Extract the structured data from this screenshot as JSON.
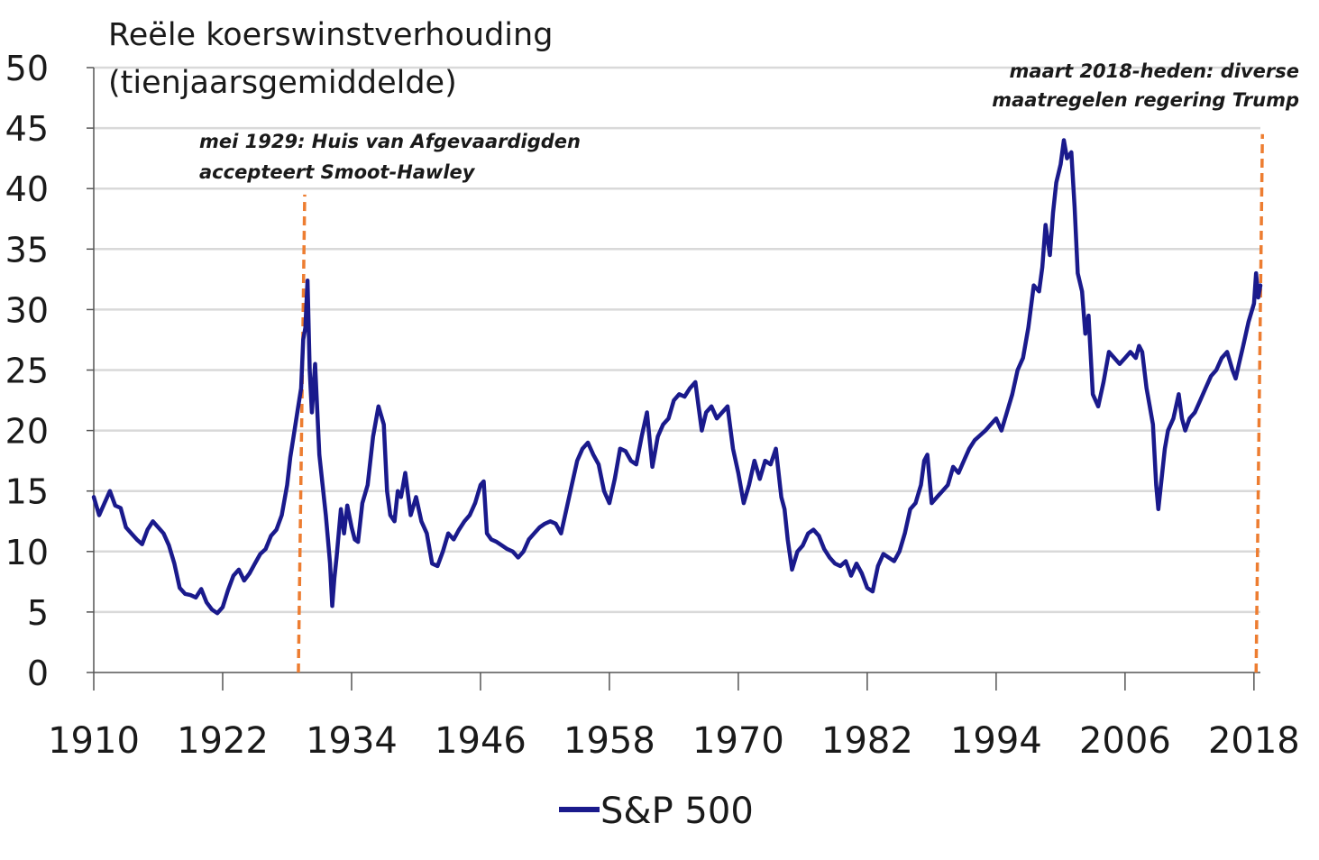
{
  "chart_data": {
    "type": "line",
    "title_lines": [
      "Reële koerswinstverhouding",
      "(tienjaarsgemiddelde)"
    ],
    "xlabel": "",
    "ylabel": "",
    "xlim": [
      1910,
      2018.6
    ],
    "ylim": [
      0,
      50
    ],
    "yticks": [
      0,
      5,
      10,
      15,
      20,
      25,
      30,
      35,
      40,
      45,
      50
    ],
    "xticks": [
      1910,
      1922,
      1934,
      1946,
      1958,
      1970,
      1982,
      1994,
      2006,
      2018
    ],
    "grid": "horizontal",
    "legend": "bottom-center",
    "colors": {
      "series": "#1a1a8c",
      "annotation_line": "#ed7d31",
      "grid": "#d9d9d9",
      "axis": "#555555"
    },
    "series": [
      {
        "name": "S&P 500",
        "x": [
          1910.0,
          1910.5,
          1911.0,
          1911.5,
          1912.0,
          1912.5,
          1913.0,
          1913.5,
          1914.0,
          1914.5,
          1915.0,
          1915.5,
          1916.0,
          1916.5,
          1917.0,
          1917.5,
          1918.0,
          1918.5,
          1919.0,
          1919.5,
          1920.0,
          1920.5,
          1921.0,
          1921.5,
          1922.0,
          1922.5,
          1923.0,
          1923.5,
          1924.0,
          1924.5,
          1925.0,
          1925.5,
          1926.0,
          1926.5,
          1927.0,
          1927.5,
          1928.0,
          1928.3,
          1928.6,
          1929.0,
          1929.3,
          1929.5,
          1929.7,
          1929.9,
          1930.1,
          1930.3,
          1930.6,
          1931.0,
          1931.3,
          1931.6,
          1932.0,
          1932.2,
          1932.4,
          1932.6,
          1933.0,
          1933.3,
          1933.6,
          1934.0,
          1934.3,
          1934.6,
          1935.0,
          1935.5,
          1936.0,
          1936.5,
          1937.0,
          1937.3,
          1937.6,
          1938.0,
          1938.3,
          1938.6,
          1939.0,
          1939.5,
          1940.0,
          1940.5,
          1941.0,
          1941.5,
          1942.0,
          1942.5,
          1943.0,
          1943.5,
          1944.0,
          1944.5,
          1945.0,
          1945.5,
          1946.0,
          1946.3,
          1946.6,
          1947.0,
          1947.5,
          1948.0,
          1948.5,
          1949.0,
          1949.5,
          1950.0,
          1950.5,
          1951.0,
          1951.5,
          1952.0,
          1952.5,
          1953.0,
          1953.5,
          1954.0,
          1954.5,
          1955.0,
          1955.5,
          1956.0,
          1956.5,
          1957.0,
          1957.5,
          1958.0,
          1958.5,
          1959.0,
          1959.5,
          1960.0,
          1960.5,
          1961.0,
          1961.5,
          1962.0,
          1962.5,
          1963.0,
          1963.5,
          1964.0,
          1964.5,
          1965.0,
          1965.5,
          1966.0,
          1966.3,
          1966.6,
          1967.0,
          1967.5,
          1968.0,
          1968.5,
          1969.0,
          1969.5,
          1970.0,
          1970.5,
          1971.0,
          1971.5,
          1972.0,
          1972.5,
          1973.0,
          1973.5,
          1974.0,
          1974.3,
          1974.6,
          1975.0,
          1975.5,
          1976.0,
          1976.5,
          1977.0,
          1977.5,
          1978.0,
          1978.5,
          1979.0,
          1979.5,
          1980.0,
          1980.5,
          1981.0,
          1981.5,
          1982.0,
          1982.5,
          1983.0,
          1983.5,
          1984.0,
          1984.5,
          1985.0,
          1985.5,
          1986.0,
          1986.5,
          1987.0,
          1987.3,
          1987.6,
          1988.0,
          1988.5,
          1989.0,
          1989.5,
          1990.0,
          1990.5,
          1991.0,
          1991.5,
          1992.0,
          1992.5,
          1993.0,
          1993.5,
          1994.0,
          1994.5,
          1995.0,
          1995.5,
          1996.0,
          1996.5,
          1997.0,
          1997.5,
          1998.0,
          1998.3,
          1998.6,
          1999.0,
          1999.3,
          1999.6,
          2000.0,
          2000.3,
          2000.6,
          2001.0,
          2001.3,
          2001.6,
          2002.0,
          2002.3,
          2002.6,
          2003.0,
          2003.5,
          2004.0,
          2004.5,
          2005.0,
          2005.5,
          2006.0,
          2006.5,
          2007.0,
          2007.3,
          2007.6,
          2008.0,
          2008.3,
          2008.6,
          2008.9,
          2009.1,
          2009.4,
          2009.7,
          2010.0,
          2010.5,
          2011.0,
          2011.3,
          2011.6,
          2012.0,
          2012.5,
          2013.0,
          2013.5,
          2014.0,
          2014.5,
          2015.0,
          2015.5,
          2016.0,
          2016.3,
          2016.6,
          2017.0,
          2017.5,
          2018.0,
          2018.2,
          2018.4,
          2018.6
        ],
        "values": [
          14.5,
          13.0,
          14.0,
          15.0,
          13.8,
          13.6,
          12.0,
          11.5,
          11.0,
          10.6,
          11.8,
          12.5,
          12.0,
          11.5,
          10.5,
          9.0,
          7.0,
          6.5,
          6.4,
          6.2,
          6.9,
          5.8,
          5.2,
          4.9,
          5.4,
          6.8,
          8.0,
          8.5,
          7.6,
          8.2,
          9.0,
          9.8,
          10.2,
          11.3,
          11.8,
          13.0,
          15.5,
          17.8,
          19.5,
          21.8,
          23.5,
          27.5,
          28.5,
          32.4,
          25.0,
          21.5,
          25.5,
          18.0,
          15.5,
          13.0,
          9.0,
          5.5,
          7.8,
          9.5,
          13.5,
          11.5,
          13.8,
          12.0,
          11.0,
          10.8,
          14.0,
          15.5,
          19.5,
          22.0,
          20.5,
          15.0,
          13.0,
          12.5,
          15.0,
          14.5,
          16.5,
          13.0,
          14.5,
          12.5,
          11.5,
          9.0,
          8.8,
          10.0,
          11.5,
          11.0,
          11.8,
          12.5,
          13.0,
          14.0,
          15.5,
          15.8,
          11.5,
          11.0,
          10.8,
          10.5,
          10.2,
          10.0,
          9.5,
          10.0,
          11.0,
          11.5,
          12.0,
          12.3,
          12.5,
          12.3,
          11.5,
          13.5,
          15.5,
          17.5,
          18.5,
          19.0,
          18.0,
          17.2,
          15.0,
          14.0,
          16.0,
          18.5,
          18.3,
          17.5,
          17.2,
          19.5,
          21.5,
          17.0,
          19.5,
          20.5,
          21.0,
          22.5,
          23.0,
          22.8,
          23.5,
          24.0,
          22.0,
          20.0,
          21.5,
          22.0,
          21.0,
          21.5,
          22.0,
          18.5,
          16.5,
          14.0,
          15.5,
          17.5,
          16.0,
          17.5,
          17.2,
          18.5,
          14.5,
          13.5,
          11.0,
          8.5,
          10.0,
          10.5,
          11.5,
          11.8,
          11.3,
          10.2,
          9.5,
          9.0,
          8.8,
          9.2,
          8.0,
          9.0,
          8.2,
          7.0,
          6.7,
          8.8,
          9.8,
          9.5,
          9.2,
          10.0,
          11.5,
          13.5,
          14.0,
          15.5,
          17.5,
          18.0,
          14.0,
          14.5,
          15.0,
          15.5,
          17.0,
          16.5,
          17.5,
          18.5,
          19.2,
          19.6,
          20.0,
          20.5,
          21.0,
          20.0,
          21.5,
          23.0,
          25.0,
          26.0,
          28.5,
          32.0,
          31.5,
          33.5,
          37.0,
          34.5,
          38.0,
          40.5,
          42.0,
          44.0,
          42.5,
          43.0,
          38.5,
          33.0,
          31.5,
          28.0,
          29.5,
          23.0,
          22.0,
          24.0,
          26.5,
          26.0,
          25.5,
          26.0,
          26.5,
          26.0,
          27.0,
          26.5,
          23.5,
          22.0,
          20.5,
          15.5,
          13.5,
          16.0,
          18.5,
          20.0,
          21.0,
          23.0,
          21.0,
          20.0,
          21.0,
          21.5,
          22.5,
          23.5,
          24.5,
          25.0,
          26.0,
          26.5,
          25.0,
          24.3,
          25.5,
          27.0,
          29.0,
          30.5,
          33.0,
          31.0,
          32.0
        ]
      }
    ],
    "annotations": [
      {
        "x": 1929.3,
        "text_lines": [
          "mei 1929: Huis van Afgevaardigden",
          "accepteert Smoot-Hawley"
        ]
      },
      {
        "x": 2018.2,
        "text_lines": [
          "maart 2018-heden: diverse",
          "maatregelen regering Trump"
        ]
      }
    ]
  }
}
